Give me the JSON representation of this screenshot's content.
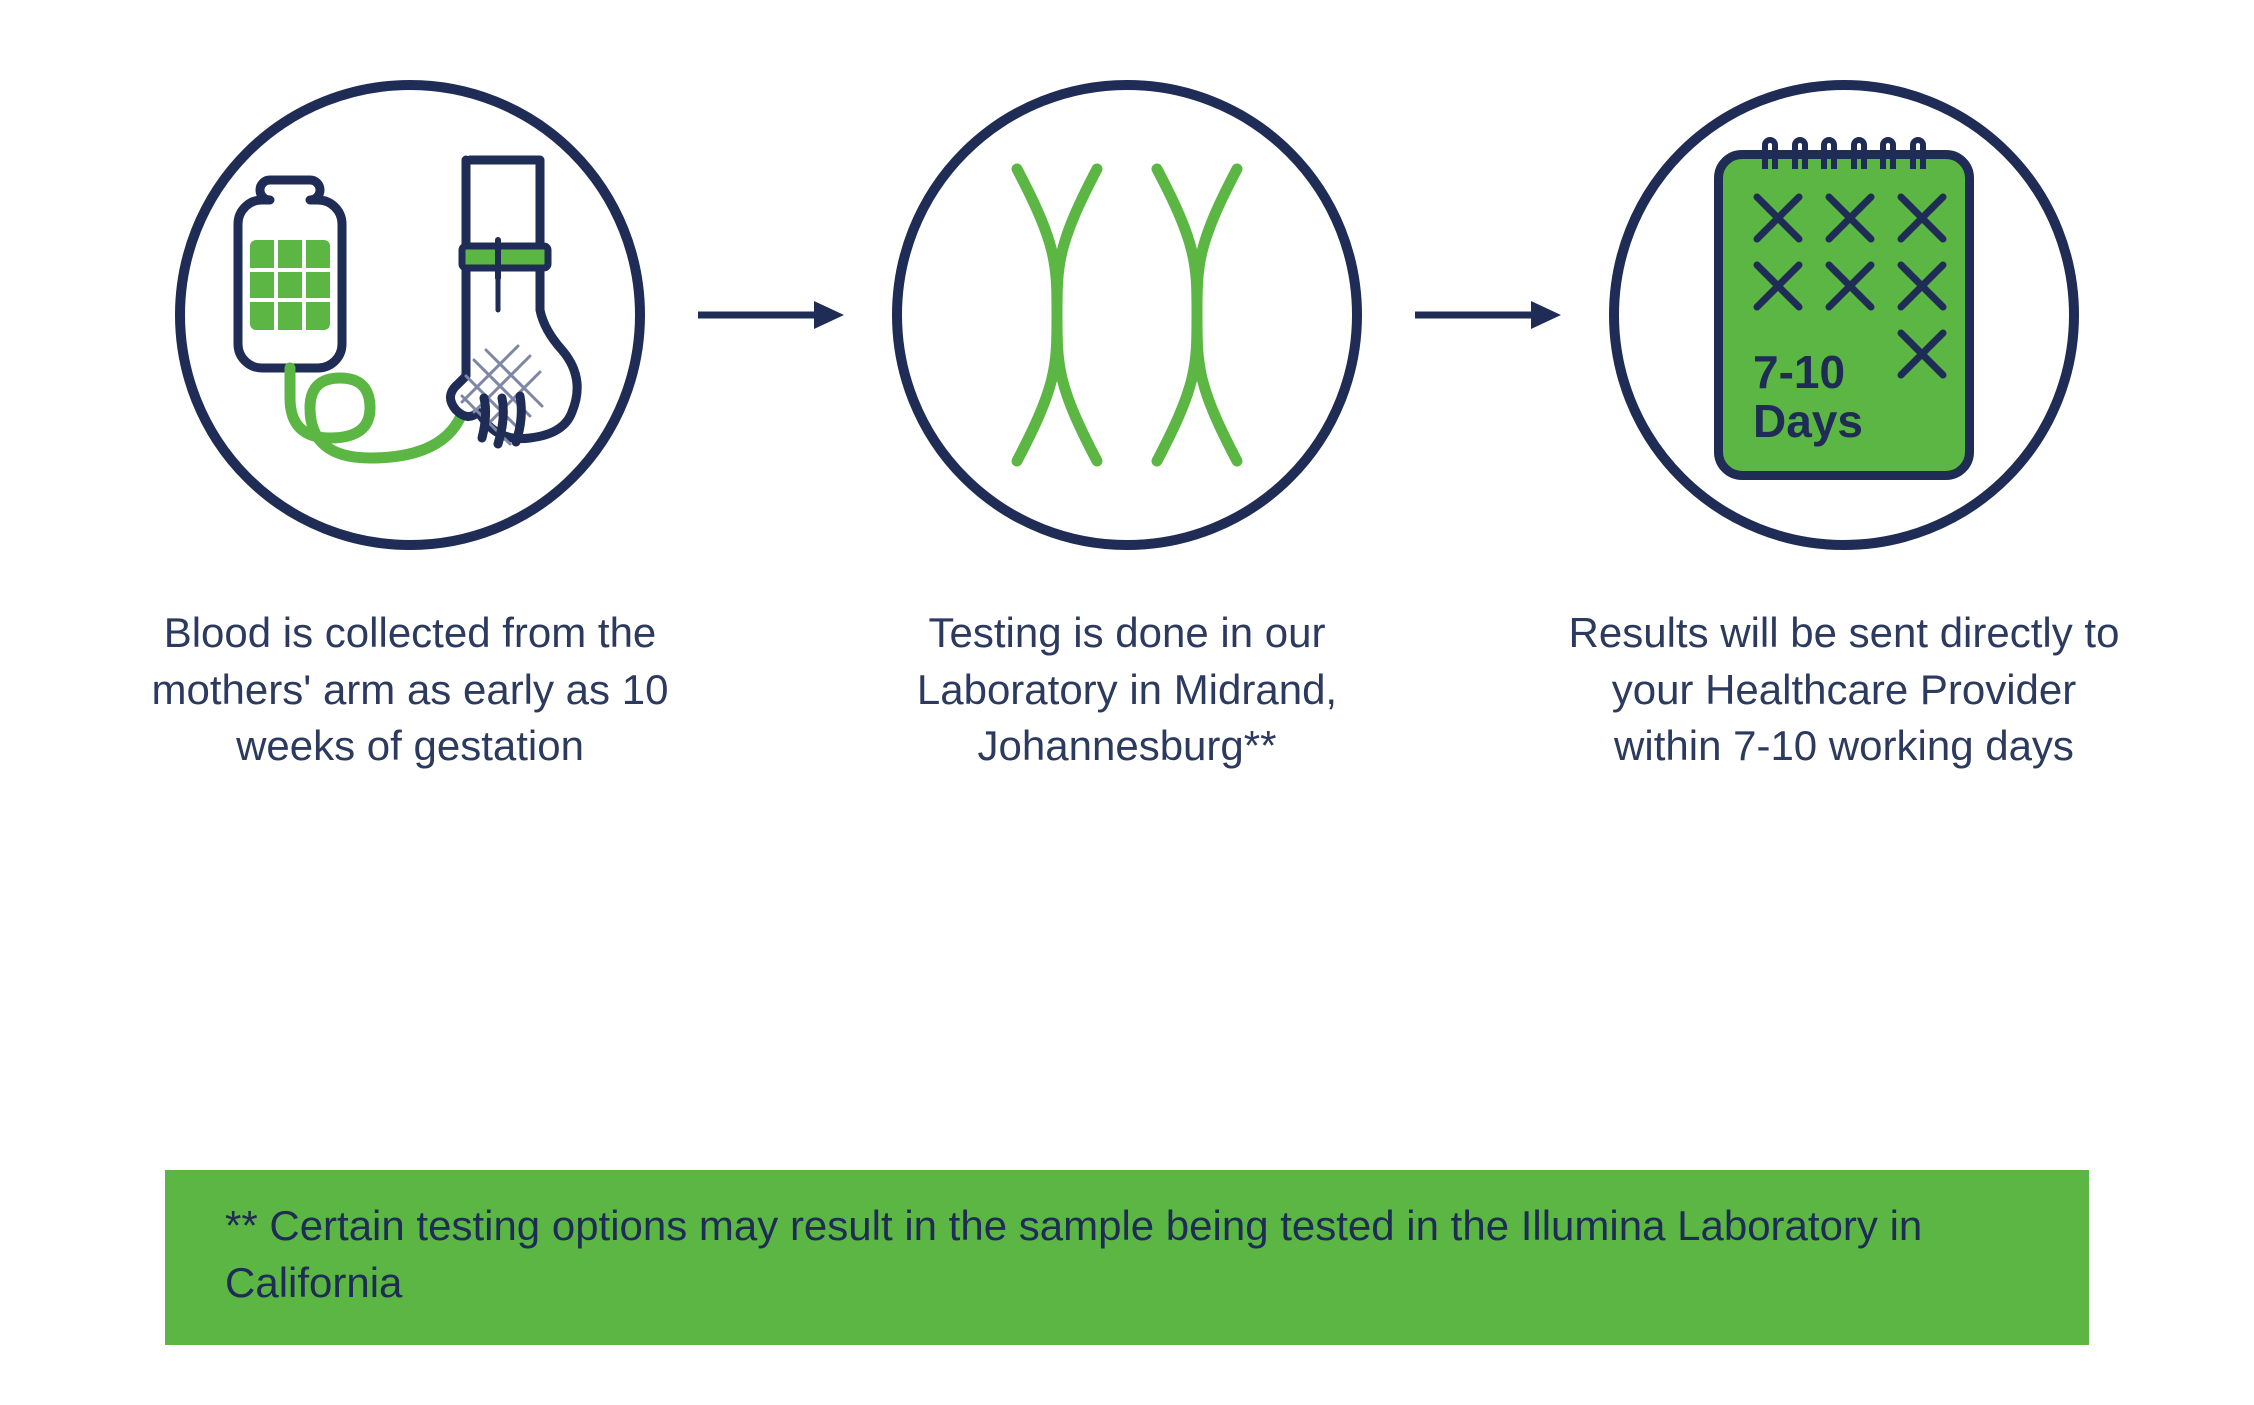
{
  "diagram": {
    "type": "flowchart",
    "background_color": "#ffffff",
    "stroke_color": "#1f2c55",
    "accent_color": "#5cb643",
    "circle_border_width": 10,
    "caption_fontsize": 42,
    "caption_color": "#2b3a5e",
    "arrow_stroke_width": 7,
    "arrow_length": 150,
    "steps": [
      {
        "id": "blood-collection",
        "icon": "blood-bag-arm-icon",
        "caption": "Blood is collected from the mothers' arm as early as 10 weeks of gestation"
      },
      {
        "id": "lab-testing",
        "icon": "chromosomes-icon",
        "caption": "Testing is done in our Laboratory in Midrand, Johannesburg**"
      },
      {
        "id": "results",
        "icon": "calendar-7-10-days-icon",
        "caption": "Results will be sent directly to your Healthcare Provider within 7-10 working days"
      }
    ],
    "calendar": {
      "days_label_top": "7-10",
      "days_label_bottom": "Days",
      "days_label_color": "#1f2c55",
      "days_label_fontsize": 46,
      "x_count": 7,
      "x_stroke_width": 7,
      "bg_fill": "#5cb643",
      "binding_rings": 6
    },
    "footnote": {
      "text": "** Certain testing options may result in the sample being tested in the Illumina Laboratory in California",
      "bg_color": "#5cb643",
      "text_color": "#1f2c55",
      "fontsize": 42
    }
  }
}
